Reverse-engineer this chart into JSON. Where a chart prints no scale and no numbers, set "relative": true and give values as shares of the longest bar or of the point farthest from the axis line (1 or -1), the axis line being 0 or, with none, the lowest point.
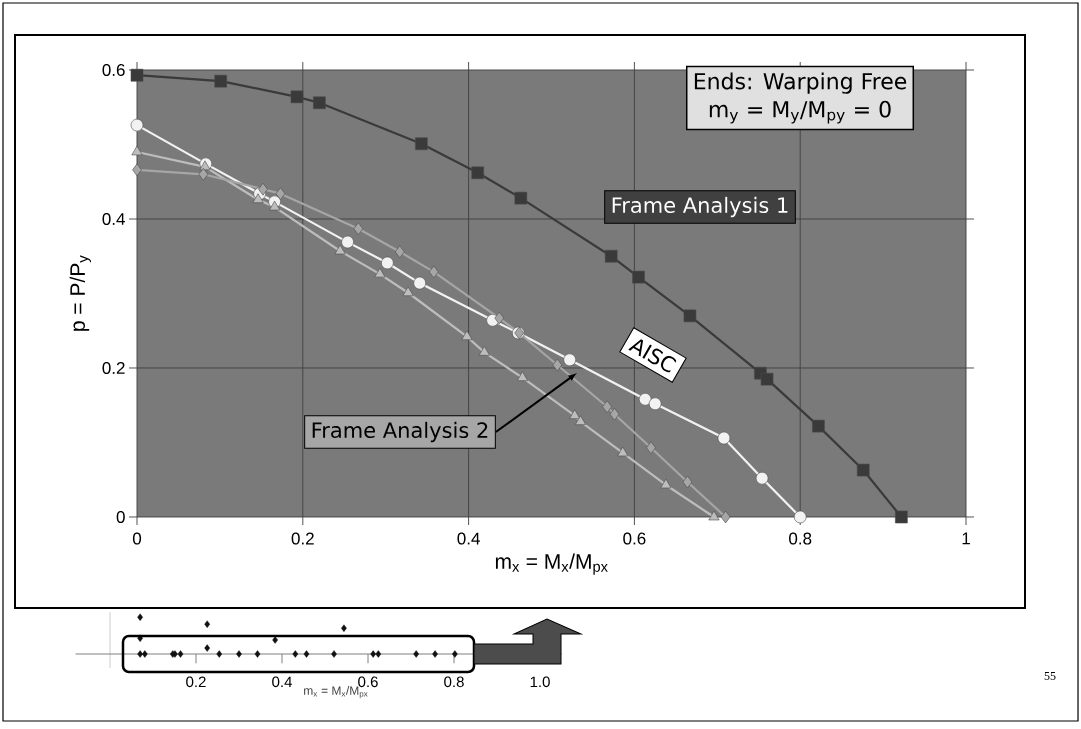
{
  "chart_data": [
    {
      "type": "line",
      "xlabel": "m$_{x}$ = M$_{x}$/M$_{px}$",
      "ylabel": "p = P/P$_{y}$",
      "xlim": [
        0,
        1
      ],
      "ylim": [
        0,
        0.6
      ],
      "xticks": [
        0,
        0.2,
        0.4,
        0.6,
        0.8,
        1
      ],
      "yticks": [
        0,
        0.2,
        0.4,
        0.6
      ],
      "grid": true,
      "annotations": [
        "Ends:  Warping Free",
        "m$_{y}$ = M$_{y}$/M$_{py}$ = 0",
        "55"
      ],
      "series": [
        {
          "name": "Frame Analysis 1",
          "color": "#3a3a3a",
          "marker": "square",
          "x": [
            0,
            0.101,
            0.193,
            0.22,
            0.343,
            0.411,
            0.463,
            0.572,
            0.605,
            0.667,
            0.752,
            0.76,
            0.822,
            0.876,
            0.922
          ],
          "values": [
            0.593,
            0.585,
            0.564,
            0.556,
            0.501,
            0.462,
            0.428,
            0.35,
            0.322,
            0.27,
            0.193,
            0.185,
            0.122,
            0.063,
            0
          ]
        },
        {
          "name": "AISC",
          "color": "#f2f2f2",
          "marker": "circle",
          "x": [
            0,
            0.083,
            0.148,
            0.166,
            0.254,
            0.302,
            0.341,
            0.429,
            0.46,
            0.522,
            0.613,
            0.625,
            0.708,
            0.754,
            0.8
          ],
          "values": [
            0.526,
            0.474,
            0.434,
            0.423,
            0.369,
            0.341,
            0.314,
            0.264,
            0.247,
            0.211,
            0.158,
            0.152,
            0.106,
            0.052,
            0
          ]
        },
        {
          "color": "#bdbdbd",
          "marker": "triangle",
          "x": [
            0,
            0.082,
            0.146,
            0.166,
            0.245,
            0.293,
            0.327,
            0.398,
            0.419,
            0.465,
            0.528,
            0.535,
            0.586,
            0.638,
            0.696
          ],
          "values": [
            0.49,
            0.47,
            0.426,
            0.416,
            0.357,
            0.326,
            0.301,
            0.242,
            0.221,
            0.187,
            0.136,
            0.128,
            0.086,
            0.043,
            0
          ]
        },
        {
          "name": "Frame Analysis 2",
          "color": "#a6a6a6",
          "marker": "diamond",
          "x": [
            0,
            0.08,
            0.152,
            0.173,
            0.267,
            0.317,
            0.358,
            0.437,
            0.461,
            0.507,
            0.567,
            0.576,
            0.62,
            0.664,
            0.71
          ],
          "values": [
            0.466,
            0.46,
            0.44,
            0.434,
            0.387,
            0.356,
            0.329,
            0.267,
            0.247,
            0.204,
            0.148,
            0.138,
            0.093,
            0.047,
            0
          ]
        }
      ]
    },
    {
      "type": "scatter",
      "relative": true,
      "xlabel": "m$_{x}$ = M$_{x}$/M$_{px}$",
      "xlim": [
        0,
        1.05
      ],
      "xticks": [
        0.2,
        0.4,
        0.6,
        0.8,
        {
          "value": 1,
          "label": "1.0"
        }
      ],
      "marker": "diamond",
      "color": "#111111",
      "x": [
        0.07,
        0.07,
        0.07,
        0.081,
        0.146,
        0.151,
        0.164,
        0.226,
        0.226,
        0.254,
        0.3,
        0.343,
        0.384,
        0.431,
        0.457,
        0.521,
        0.544,
        0.612,
        0.624,
        0.712,
        0.756,
        0.802
      ],
      "values": [
        1,
        0.43,
        0,
        0,
        0,
        0,
        0,
        0.81,
        0.16,
        0,
        0,
        0,
        0.38,
        0,
        0,
        0,
        0.7,
        0,
        0,
        0,
        0,
        0
      ]
    }
  ]
}
